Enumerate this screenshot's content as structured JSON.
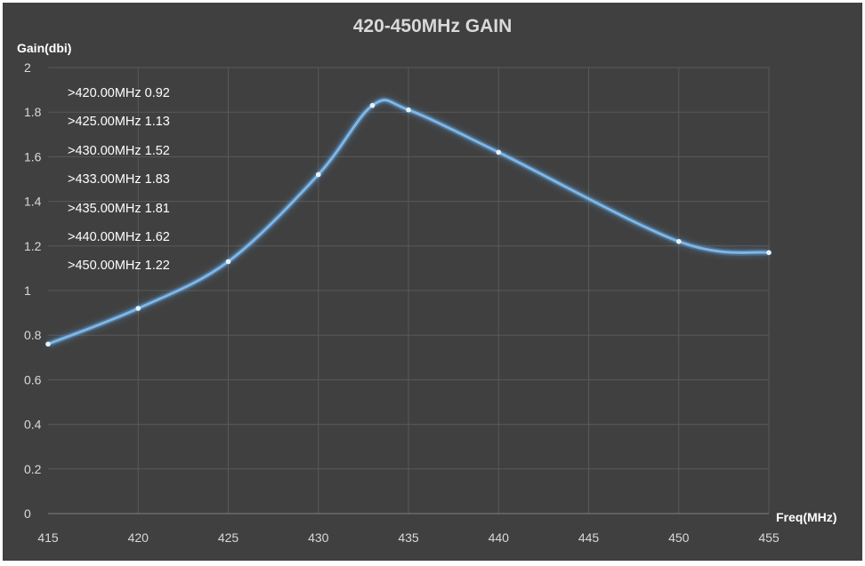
{
  "chart_data": {
    "type": "line",
    "title": "420-450MHz GAIN",
    "xlabel": "Freq(MHz)",
    "ylabel": "Gain(dbi)",
    "xlim": [
      415,
      455
    ],
    "ylim": [
      0,
      2
    ],
    "x_ticks": [
      "415",
      "420",
      "425",
      "430",
      "435",
      "440",
      "445",
      "450",
      "455"
    ],
    "y_ticks": [
      "0",
      "0.2",
      "0.4",
      "0.6",
      "0.8",
      "1",
      "1.2",
      "1.4",
      "1.6",
      "1.8",
      "2"
    ],
    "grid": true,
    "line_color": "#5b9bd5",
    "series": [
      {
        "x": [
          415,
          420,
          425,
          430,
          433,
          435,
          440,
          450,
          455
        ],
        "y": [
          0.76,
          0.92,
          1.13,
          1.52,
          1.83,
          1.81,
          1.62,
          1.22,
          1.17
        ]
      }
    ],
    "annotations": [
      ">420.00MHz 0.92",
      ">425.00MHz 1.13",
      ">430.00MHz 1.52",
      ">433.00MHz 1.83",
      ">435.00MHz 1.81",
      ">440.00MHz 1.62",
      ">450.00MHz 1.22"
    ]
  }
}
